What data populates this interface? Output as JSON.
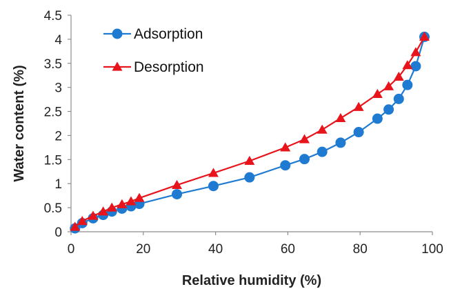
{
  "chart_data": {
    "type": "line",
    "xlabel": "Relative humidity (%)",
    "ylabel": "Water content (%)",
    "xlim": [
      0,
      100
    ],
    "ylim": [
      0,
      4.5
    ],
    "xticks": [
      "0",
      "20",
      "40",
      "60",
      "80",
      "100"
    ],
    "yticks": [
      "0",
      "0.5",
      "1",
      "1.5",
      "2",
      "2.5",
      "3",
      "3.5",
      "4",
      "4.5"
    ],
    "grid": false,
    "legend": "top-left",
    "series": [
      {
        "name": "Adsorption",
        "color": "#1f7bd1",
        "marker": "circle",
        "x": [
          1.1,
          3.1,
          6.1,
          8.9,
          11.3,
          14.1,
          16.6,
          18.9,
          29.3,
          39.4,
          49.4,
          59.3,
          64.6,
          69.5,
          74.6,
          79.6,
          84.8,
          87.9,
          90.7,
          93.1,
          95.4,
          97.8
        ],
        "y": [
          0.07,
          0.18,
          0.28,
          0.35,
          0.42,
          0.48,
          0.53,
          0.58,
          0.78,
          0.95,
          1.13,
          1.38,
          1.51,
          1.66,
          1.85,
          2.07,
          2.35,
          2.54,
          2.76,
          3.05,
          3.44,
          4.05
        ]
      },
      {
        "name": "Desorption",
        "color": "#e8141b",
        "marker": "triangle",
        "x": [
          1.1,
          3.1,
          6.1,
          8.9,
          11.3,
          14.1,
          16.6,
          18.9,
          29.3,
          39.4,
          49.4,
          59.3,
          64.6,
          69.5,
          74.6,
          79.6,
          84.8,
          87.9,
          90.7,
          93.1,
          95.4,
          97.8
        ],
        "y": [
          0.1,
          0.22,
          0.33,
          0.42,
          0.5,
          0.57,
          0.63,
          0.7,
          0.97,
          1.22,
          1.47,
          1.75,
          1.92,
          2.12,
          2.36,
          2.59,
          2.86,
          3.02,
          3.22,
          3.46,
          3.73,
          4.05
        ]
      }
    ]
  }
}
